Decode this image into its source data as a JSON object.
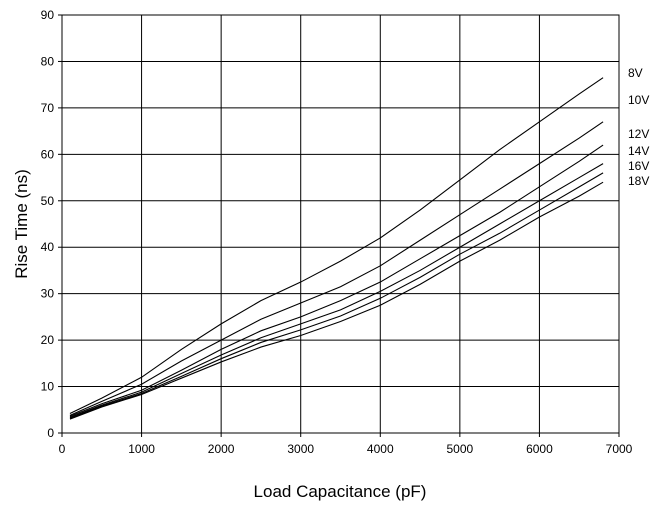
{
  "chart_data": {
    "type": "line",
    "title": "",
    "xlabel": "Load Capacitance (pF)",
    "ylabel": "Rise Time (ns)",
    "xlim": [
      0,
      7000
    ],
    "ylim": [
      0,
      90
    ],
    "xticks": [
      0,
      1000,
      2000,
      3000,
      4000,
      5000,
      6000,
      7000
    ],
    "yticks": [
      0,
      10,
      20,
      30,
      40,
      50,
      60,
      70,
      80,
      90
    ],
    "grid": true,
    "legend": "labels at right end of each line",
    "line_color": "#000000",
    "series": [
      {
        "name": "8V",
        "x": [
          100,
          500,
          1000,
          1500,
          2000,
          2500,
          3000,
          3500,
          4000,
          4500,
          5000,
          5500,
          6000,
          6500,
          6800
        ],
        "y": [
          4.2,
          7.5,
          12,
          18,
          23.5,
          28.5,
          32.5,
          37,
          42,
          48,
          54.5,
          61,
          67,
          73,
          76.5
        ]
      },
      {
        "name": "10V",
        "x": [
          100,
          500,
          1000,
          1500,
          2000,
          2500,
          3000,
          3500,
          4000,
          4500,
          5000,
          5500,
          6000,
          6500,
          6800
        ],
        "y": [
          3.8,
          6.8,
          10.5,
          15.5,
          20,
          24.5,
          28,
          31.5,
          36,
          41.5,
          47,
          52.5,
          58,
          63.5,
          67
        ]
      },
      {
        "name": "12V",
        "x": [
          100,
          500,
          1000,
          1500,
          2000,
          2500,
          3000,
          3500,
          4000,
          4500,
          5000,
          5500,
          6000,
          6500,
          6800
        ],
        "y": [
          3.6,
          6.3,
          9.2,
          13.5,
          18,
          22,
          25,
          28.5,
          32.5,
          37.5,
          42.5,
          47.5,
          53,
          58.5,
          62
        ]
      },
      {
        "name": "14V",
        "x": [
          100,
          500,
          1000,
          1500,
          2000,
          2500,
          3000,
          3500,
          4000,
          4500,
          5000,
          5500,
          6000,
          6500,
          6800
        ],
        "y": [
          3.4,
          6.0,
          8.8,
          12.8,
          16.8,
          20.5,
          23.5,
          26.5,
          30.5,
          35,
          40,
          45,
          50,
          55,
          58
        ]
      },
      {
        "name": "16V",
        "x": [
          100,
          500,
          1000,
          1500,
          2000,
          2500,
          3000,
          3500,
          4000,
          4500,
          5000,
          5500,
          6000,
          6500,
          6800
        ],
        "y": [
          3.2,
          5.8,
          8.5,
          12.2,
          16,
          19.5,
          22.2,
          25.2,
          29,
          33.5,
          38.5,
          43,
          48,
          53,
          56
        ]
      },
      {
        "name": "18V",
        "x": [
          100,
          500,
          1000,
          1500,
          2000,
          2500,
          3000,
          3500,
          4000,
          4500,
          5000,
          5500,
          6000,
          6500,
          6800
        ],
        "y": [
          3.0,
          5.6,
          8.3,
          11.8,
          15.3,
          18.5,
          21,
          24,
          27.5,
          32,
          37,
          41.5,
          46.5,
          51,
          54
        ]
      }
    ]
  }
}
